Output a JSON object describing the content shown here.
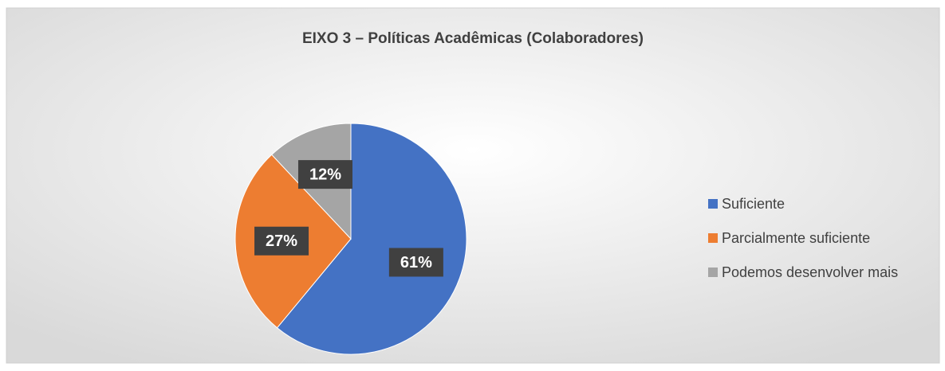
{
  "chart_data": {
    "type": "pie",
    "title": "EIXO 3 – Políticas Acadêmicas (Colaboradores)",
    "categories": [
      "Suficiente",
      "Parcialmente suficiente",
      "Podemos desenvolver mais"
    ],
    "values": [
      61,
      27,
      12
    ],
    "value_labels": [
      "61%",
      "27%",
      "12%"
    ],
    "colors": [
      "#4472c4",
      "#ed7d31",
      "#a5a5a5"
    ],
    "legend": "right"
  }
}
